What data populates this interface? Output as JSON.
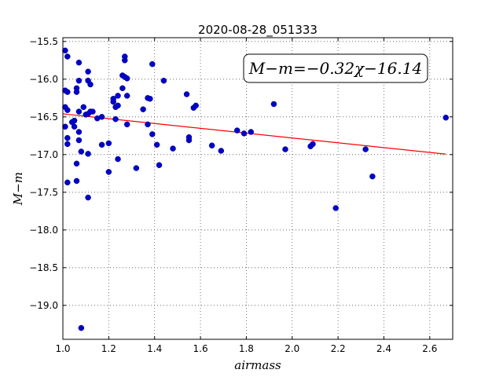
{
  "chart_data": {
    "type": "scatter",
    "title": "2020-08-28_051333",
    "xlabel": "airmass",
    "ylabel": "M−m",
    "xlim": [
      1.0,
      2.7
    ],
    "ylim": [
      -15.45,
      -19.45
    ],
    "y_inverted": true,
    "x_ticks": [
      1.0,
      1.2,
      1.4,
      1.6,
      1.8,
      2.0,
      2.2,
      2.4,
      2.6
    ],
    "x_tick_labels": [
      "1.0",
      "1.2",
      "1.4",
      "1.6",
      "1.8",
      "2.0",
      "2.2",
      "2.4",
      "2.6"
    ],
    "y_ticks": [
      -15.5,
      -16.0,
      -16.5,
      -17.0,
      -17.5,
      -18.0,
      -18.5,
      -19.0
    ],
    "y_tick_labels": [
      "−15.5",
      "−16.0",
      "−16.5",
      "−17.0",
      "−17.5",
      "−18.0",
      "−18.5",
      "−19.0"
    ],
    "grid": true,
    "annotation": "M−m=−0.32χ−16.14",
    "annotation_position": "top-right",
    "fit_line": {
      "slope": -0.32,
      "intercept": -16.14,
      "x_range": [
        1.0,
        2.67
      ],
      "color": "#ff0000"
    },
    "point_color": "#0000cc",
    "points": [
      [
        1.01,
        -15.62
      ],
      [
        1.02,
        -15.7
      ],
      [
        1.01,
        -16.15
      ],
      [
        1.02,
        -16.17
      ],
      [
        1.01,
        -16.37
      ],
      [
        1.02,
        -16.41
      ],
      [
        1.01,
        -16.63
      ],
      [
        1.02,
        -16.78
      ],
      [
        1.02,
        -16.86
      ],
      [
        1.02,
        -17.37
      ],
      [
        1.04,
        -16.57
      ],
      [
        1.05,
        -16.63
      ],
      [
        1.05,
        -16.55
      ],
      [
        1.06,
        -16.12
      ],
      [
        1.06,
        -16.17
      ],
      [
        1.07,
        -15.78
      ],
      [
        1.07,
        -16.02
      ],
      [
        1.07,
        -16.43
      ],
      [
        1.07,
        -16.7
      ],
      [
        1.07,
        -16.81
      ],
      [
        1.06,
        -17.12
      ],
      [
        1.06,
        -17.35
      ],
      [
        1.08,
        -16.96
      ],
      [
        1.08,
        -19.3
      ],
      [
        1.09,
        -16.37
      ],
      [
        1.1,
        -16.47
      ],
      [
        1.11,
        -15.9
      ],
      [
        1.11,
        -16.02
      ],
      [
        1.11,
        -16.46
      ],
      [
        1.12,
        -16.43
      ],
      [
        1.13,
        -16.43
      ],
      [
        1.12,
        -16.07
      ],
      [
        1.11,
        -16.99
      ],
      [
        1.11,
        -17.57
      ],
      [
        1.15,
        -16.52
      ],
      [
        1.17,
        -16.5
      ],
      [
        1.17,
        -16.87
      ],
      [
        1.2,
        -16.85
      ],
      [
        1.2,
        -17.23
      ],
      [
        1.22,
        -16.26
      ],
      [
        1.22,
        -16.3
      ],
      [
        1.23,
        -16.37
      ],
      [
        1.23,
        -16.53
      ],
      [
        1.24,
        -16.22
      ],
      [
        1.24,
        -16.35
      ],
      [
        1.24,
        -17.06
      ],
      [
        1.26,
        -15.95
      ],
      [
        1.26,
        -16.12
      ],
      [
        1.27,
        -15.7
      ],
      [
        1.27,
        -15.75
      ],
      [
        1.27,
        -15.97
      ],
      [
        1.28,
        -15.99
      ],
      [
        1.28,
        -16.22
      ],
      [
        1.28,
        -16.6
      ],
      [
        1.32,
        -17.18
      ],
      [
        1.35,
        -16.4
      ],
      [
        1.37,
        -16.25
      ],
      [
        1.38,
        -16.26
      ],
      [
        1.37,
        -16.6
      ],
      [
        1.39,
        -15.8
      ],
      [
        1.39,
        -16.73
      ],
      [
        1.41,
        -16.87
      ],
      [
        1.42,
        -17.14
      ],
      [
        1.44,
        -16.02
      ],
      [
        1.48,
        -16.92
      ],
      [
        1.54,
        -16.2
      ],
      [
        1.55,
        -16.77
      ],
      [
        1.55,
        -16.81
      ],
      [
        1.57,
        -16.38
      ],
      [
        1.58,
        -16.35
      ],
      [
        1.65,
        -16.88
      ],
      [
        1.69,
        -16.95
      ],
      [
        1.76,
        -16.68
      ],
      [
        1.79,
        -16.72
      ],
      [
        1.82,
        -16.7
      ],
      [
        1.92,
        -16.33
      ],
      [
        1.97,
        -16.93
      ],
      [
        2.08,
        -16.89
      ],
      [
        2.09,
        -16.86
      ],
      [
        2.19,
        -17.71
      ],
      [
        2.32,
        -16.93
      ],
      [
        2.35,
        -17.29
      ],
      [
        2.67,
        -16.51
      ]
    ]
  }
}
